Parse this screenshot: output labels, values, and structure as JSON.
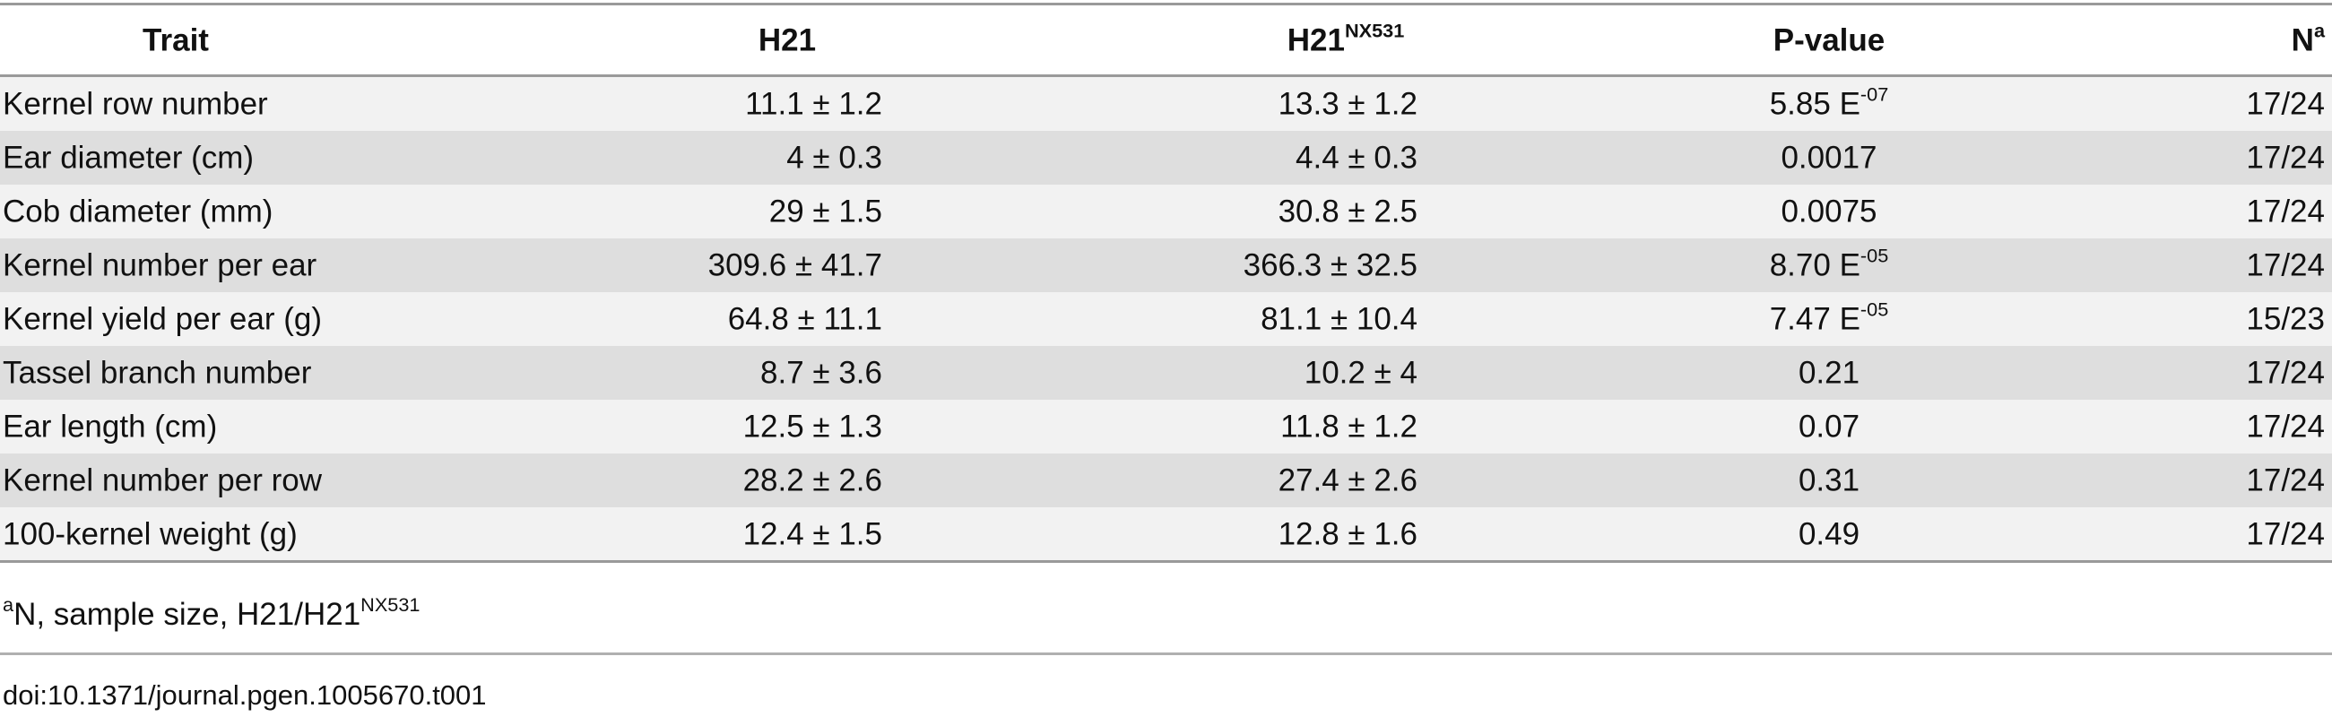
{
  "table": {
    "header": [
      "Trait",
      "H21",
      {
        "text": "H21",
        "sup": "NX531"
      },
      "P-value",
      {
        "text": "N",
        "sup": "a"
      }
    ],
    "rows": [
      [
        "Kernel row number",
        "11.1 ± 1.2",
        "13.3 ± 1.2",
        {
          "text": "5.85 E",
          "sup": "-07"
        },
        "17/24"
      ],
      [
        "Ear diameter (cm)",
        "4 ± 0.3",
        "4.4 ± 0.3",
        "0.0017",
        "17/24"
      ],
      [
        "Cob diameter (mm)",
        "29 ± 1.5",
        "30.8 ± 2.5",
        "0.0075",
        "17/24"
      ],
      [
        "Kernel number per ear",
        "309.6 ± 41.7",
        "366.3 ± 32.5",
        {
          "text": "8.70 E",
          "sup": "-05"
        },
        "17/24"
      ],
      [
        "Kernel yield per ear (g)",
        "64.8 ± 11.1",
        "81.1 ± 10.4",
        {
          "text": "7.47 E",
          "sup": "-05"
        },
        "15/23"
      ],
      [
        "Tassel branch number",
        "8.7 ± 3.6",
        "10.2 ± 4",
        "0.21",
        "17/24"
      ],
      [
        "Ear length (cm)",
        "12.5 ± 1.3",
        "11.8 ± 1.2",
        "0.07",
        "17/24"
      ],
      [
        "Kernel number per row",
        "28.2 ± 2.6",
        "27.4 ± 2.6",
        "0.31",
        "17/24"
      ],
      [
        "100-kernel weight (g)",
        "12.4 ± 1.5",
        "12.8 ± 1.6",
        "0.49",
        "17/24"
      ]
    ]
  },
  "footnote": [
    {
      "sup": "a"
    },
    {
      "text": "N, sample size, H21/H21"
    },
    {
      "sup": "NX531"
    }
  ],
  "doi": "doi:10.1371/journal.pgen.1005670.t001"
}
